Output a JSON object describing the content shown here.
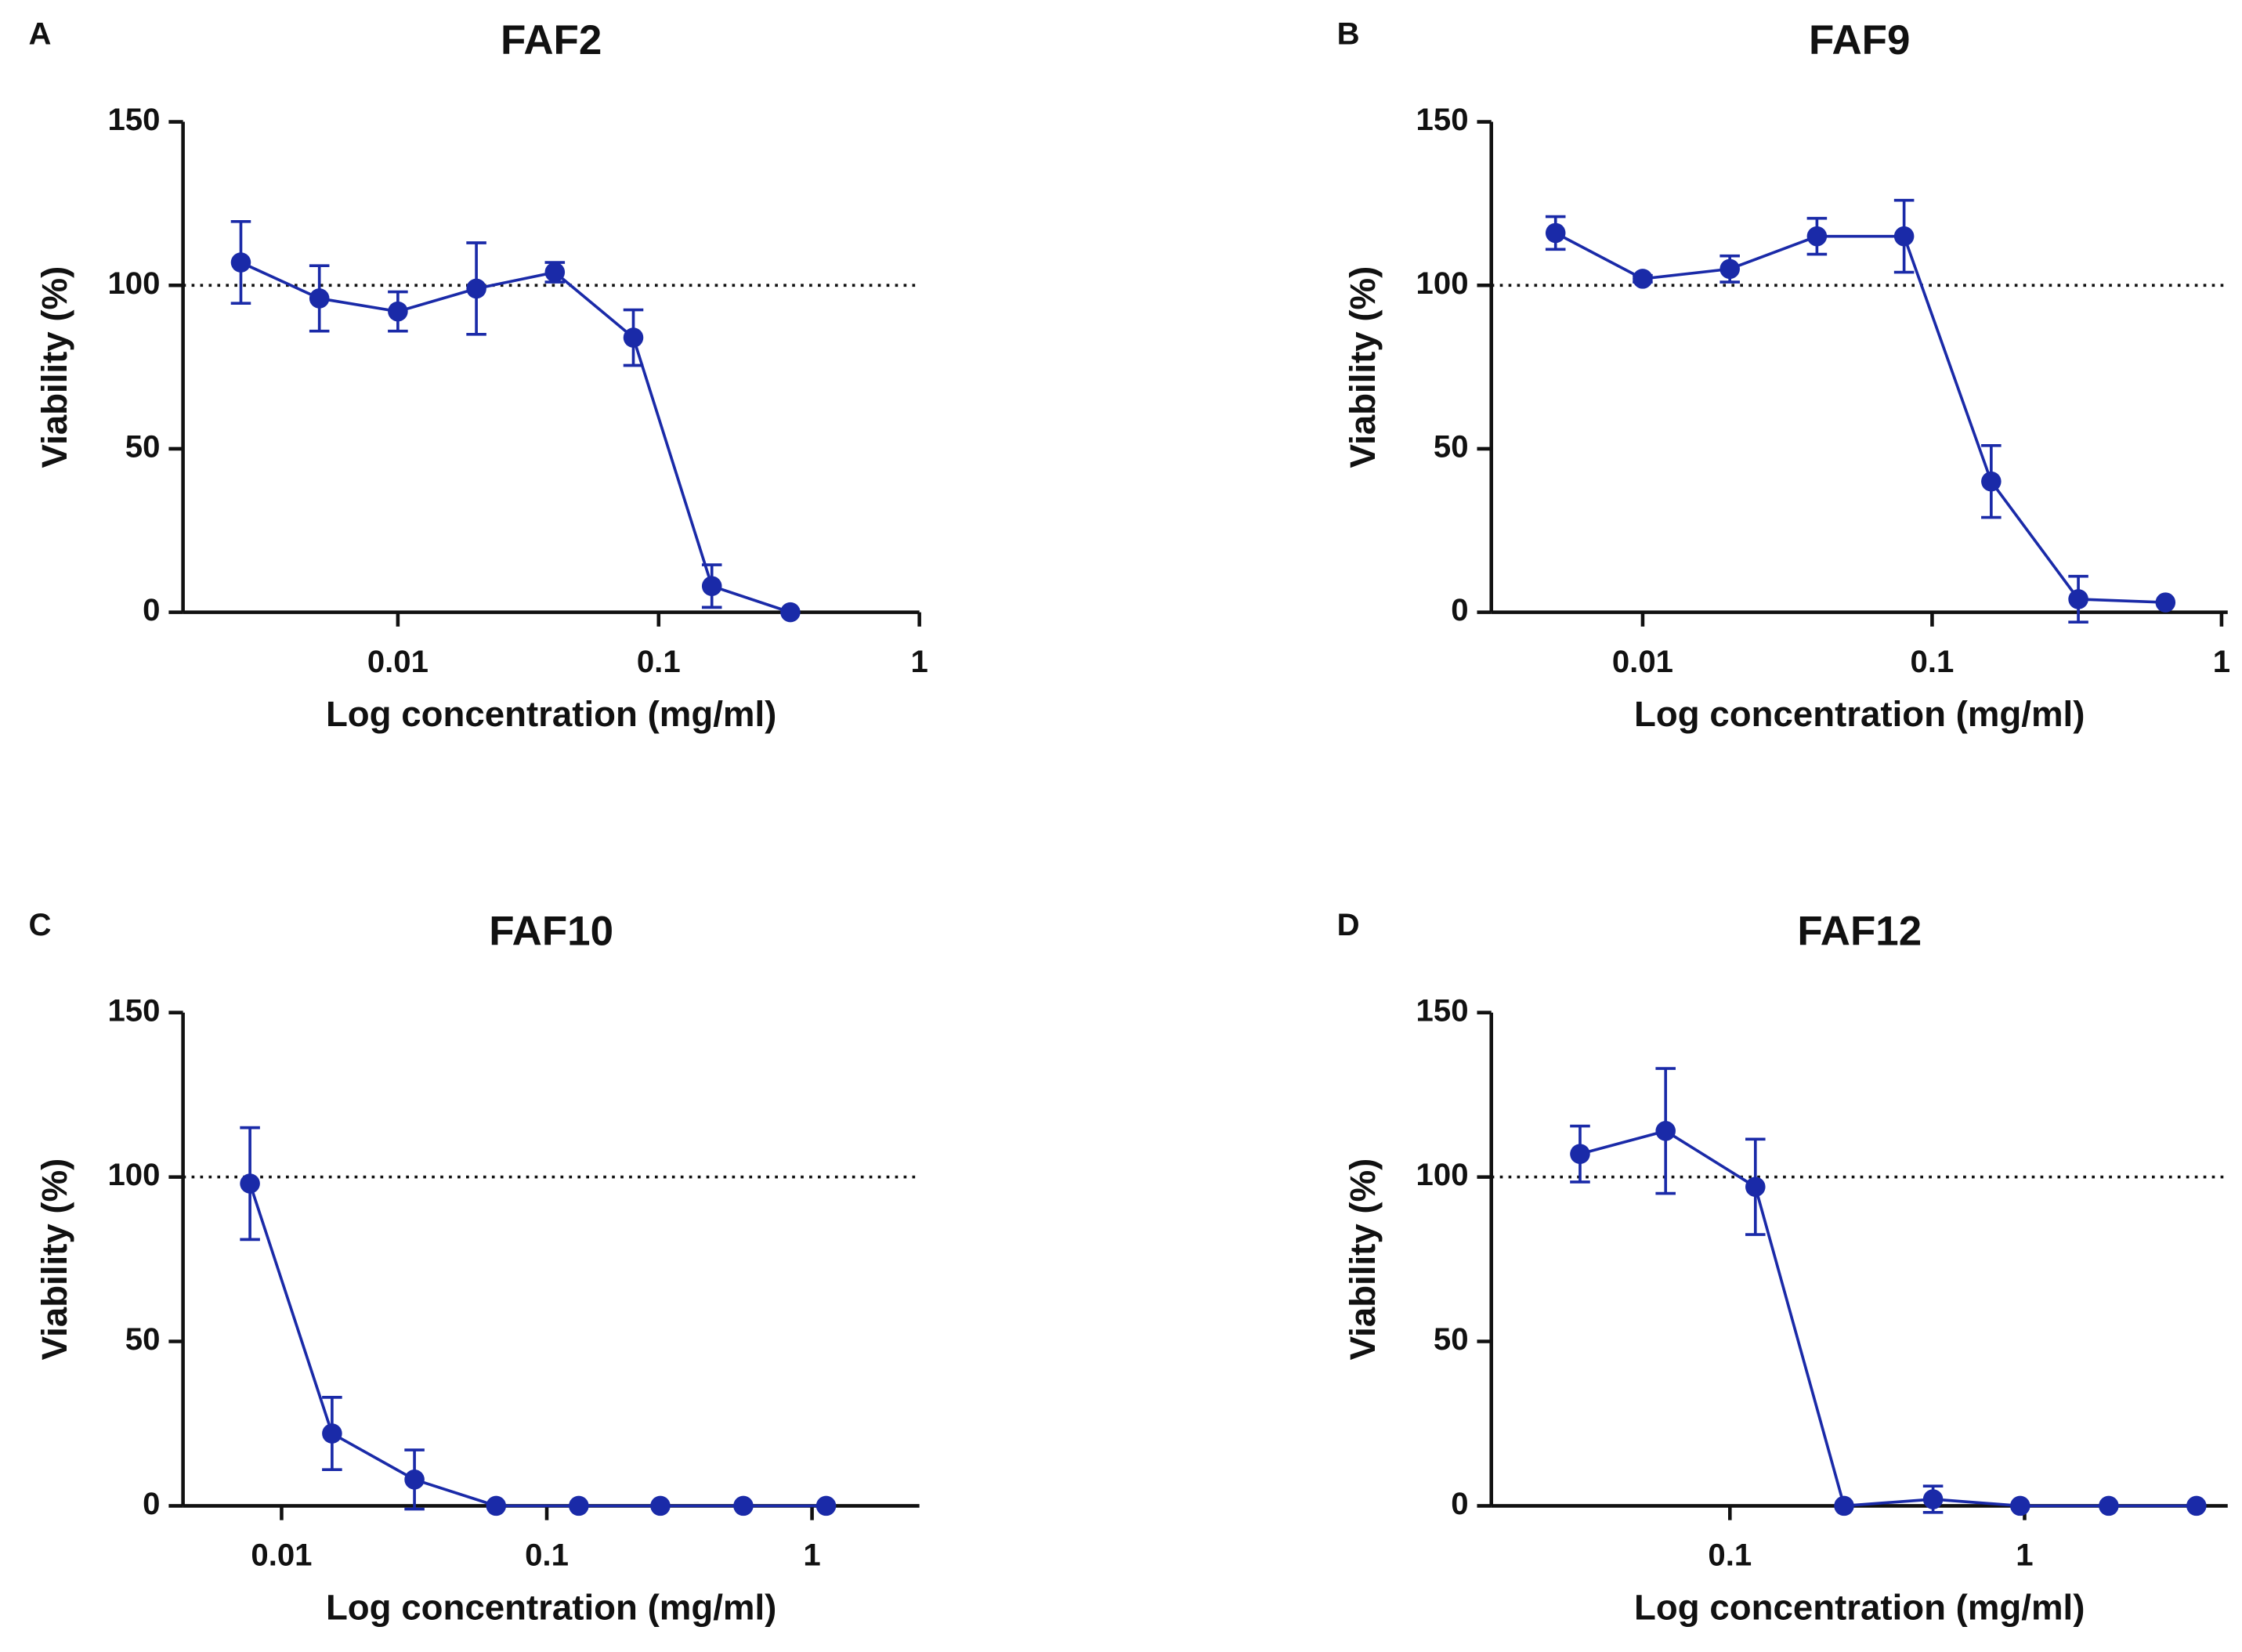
{
  "chart_data": [
    {
      "type": "line",
      "panel": "A",
      "title": "FAF2",
      "xlabel": "Log concentration (mg/ml)",
      "ylabel": "Viability (%)",
      "xscale": "log",
      "xlim": [
        0.0015,
        1
      ],
      "xticks": [
        0.01,
        0.1,
        1
      ],
      "ylim": [
        0,
        150
      ],
      "yticks": [
        0,
        50,
        100,
        150
      ],
      "hline": 100,
      "color": "#1a2aa8",
      "x": [
        0.0025,
        0.005,
        0.01,
        0.02,
        0.04,
        0.08,
        0.16,
        0.32
      ],
      "values": [
        107,
        96,
        92,
        99,
        104,
        84,
        8,
        0
      ],
      "errors": [
        12.5,
        10,
        6,
        14,
        3,
        8.5,
        6.5,
        0
      ]
    },
    {
      "type": "line",
      "panel": "B",
      "title": "FAF9",
      "xlabel": "Log concentration (mg/ml)",
      "ylabel": "Viability (%)",
      "xscale": "log",
      "xlim": [
        0.003,
        1.05
      ],
      "xticks": [
        0.01,
        0.1,
        1
      ],
      "ylim": [
        0,
        150
      ],
      "yticks": [
        0,
        50,
        100,
        150
      ],
      "hline": 100,
      "color": "#1a2aa8",
      "x": [
        0.005,
        0.01,
        0.02,
        0.04,
        0.08,
        0.16,
        0.32,
        0.64
      ],
      "values": [
        116,
        102,
        105,
        115,
        115,
        40,
        4,
        3
      ],
      "errors": [
        5,
        1,
        4,
        5.5,
        11,
        11,
        7,
        0
      ]
    },
    {
      "type": "line",
      "panel": "C",
      "title": "FAF10",
      "xlabel": "Log concentration (mg/ml)",
      "ylabel": "Viability (%)",
      "xscale": "log",
      "xlim": [
        0.00425,
        2.54
      ],
      "xticks": [
        0.01,
        0.1,
        1
      ],
      "ylim": [
        0,
        150
      ],
      "yticks": [
        0,
        50,
        100,
        150
      ],
      "hline": 100,
      "color": "#1a2aa8",
      "x": [
        0.0076,
        0.0155,
        0.0317,
        0.0644,
        0.132,
        0.268,
        0.551,
        1.13
      ],
      "values": [
        98,
        22,
        8,
        0,
        0,
        0,
        0,
        0
      ],
      "errors": [
        17,
        11,
        9,
        0,
        0,
        0,
        0,
        0
      ]
    },
    {
      "type": "line",
      "panel": "D",
      "title": "FAF12",
      "xlabel": "Log concentration (mg/ml)",
      "ylabel": "Viability (%)",
      "xscale": "log",
      "xlim": [
        0.0155,
        4.89
      ],
      "xticks": [
        0.1,
        1
      ],
      "ylim": [
        0,
        150
      ],
      "yticks": [
        0,
        50,
        100,
        150
      ],
      "hline": 100,
      "color": "#1a2aa8",
      "x": [
        0.031,
        0.0605,
        0.122,
        0.244,
        0.489,
        0.966,
        1.93,
        3.83
      ],
      "values": [
        107,
        114,
        97,
        0,
        2,
        0,
        0,
        0
      ],
      "errors": [
        8.5,
        19,
        14.5,
        0,
        4,
        0,
        0,
        0
      ]
    }
  ]
}
